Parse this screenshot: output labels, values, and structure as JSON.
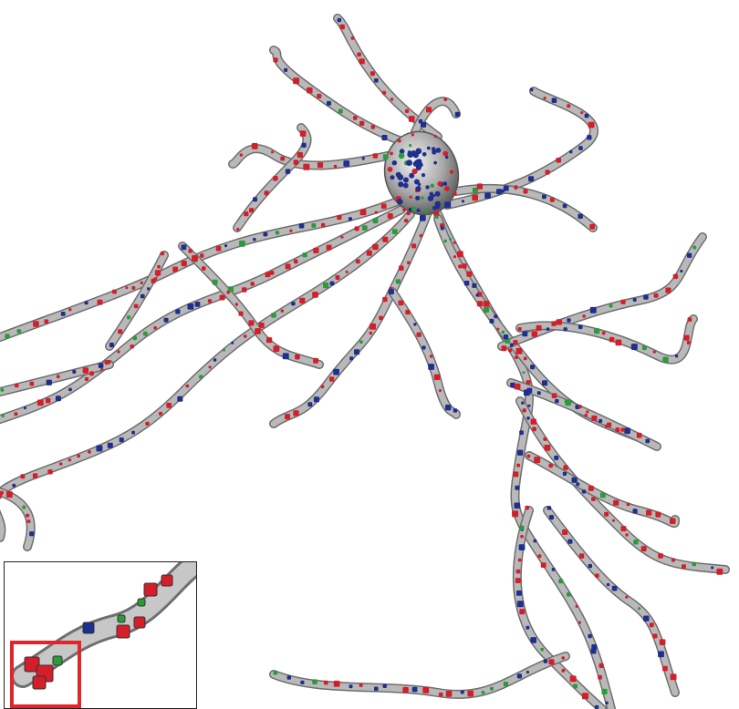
{
  "scene": {
    "kind": "3D reconstruction of a neuron with colored puncta",
    "colors": {
      "dendrite": "#b9b9b9",
      "dendrite_shadow": "#6f6f6f",
      "soma": "#a8a8a8",
      "red": "#d41e2a",
      "blue": "#1e2f8f",
      "green": "#2a9a3a",
      "highlight_box": "#e0252b",
      "inset_border": "#222222"
    },
    "inset": {
      "present": true,
      "highlight_box": true
    }
  }
}
